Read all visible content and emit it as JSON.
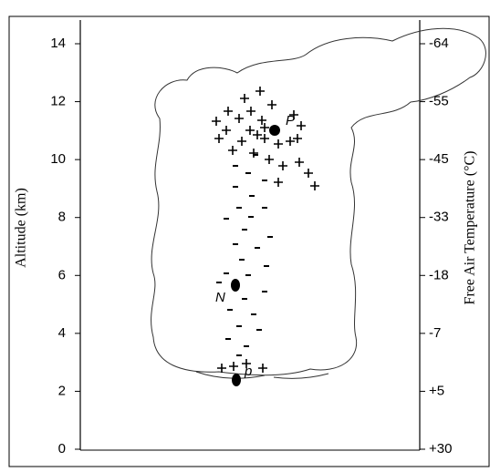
{
  "figure": {
    "left_axis": {
      "label": "Altitude (km)",
      "ticks": [
        14,
        12,
        10,
        8,
        6,
        4,
        2,
        0
      ]
    },
    "right_axis": {
      "label": "Free Air Temperature (°C)",
      "ticks": [
        "-64",
        "-55",
        "-45",
        "-33",
        "-18",
        "-7",
        "+5",
        "+30"
      ]
    },
    "charge_labels": [
      "P",
      "N",
      "p"
    ]
  }
}
